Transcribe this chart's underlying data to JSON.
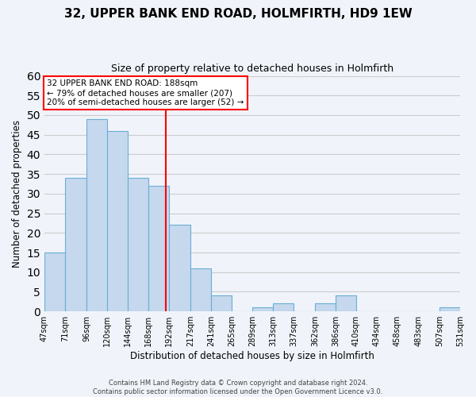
{
  "title": "32, UPPER BANK END ROAD, HOLMFIRTH, HD9 1EW",
  "subtitle": "Size of property relative to detached houses in Holmfirth",
  "xlabel": "Distribution of detached houses by size in Holmfirth",
  "ylabel": "Number of detached properties",
  "bar_edges": [
    47,
    71,
    96,
    120,
    144,
    168,
    192,
    217,
    241,
    265,
    289,
    313,
    337,
    362,
    386,
    410,
    434,
    458,
    483,
    507,
    531
  ],
  "bar_heights": [
    15,
    34,
    49,
    46,
    34,
    32,
    22,
    11,
    4,
    0,
    1,
    2,
    0,
    2,
    4,
    0,
    0,
    0,
    0,
    1
  ],
  "bar_color": "#c5d8ed",
  "bar_edgecolor": "#6aaed6",
  "property_line_x": 188,
  "property_line_color": "red",
  "annotation_text": "32 UPPER BANK END ROAD: 188sqm\n← 79% of detached houses are smaller (207)\n20% of semi-detached houses are larger (52) →",
  "annotation_box_edgecolor": "red",
  "annotation_box_facecolor": "white",
  "ylim": [
    0,
    60
  ],
  "yticks": [
    0,
    5,
    10,
    15,
    20,
    25,
    30,
    35,
    40,
    45,
    50,
    55,
    60
  ],
  "tick_labels": [
    "47sqm",
    "71sqm",
    "96sqm",
    "120sqm",
    "144sqm",
    "168sqm",
    "192sqm",
    "217sqm",
    "241sqm",
    "265sqm",
    "289sqm",
    "313sqm",
    "337sqm",
    "362sqm",
    "386sqm",
    "410sqm",
    "434sqm",
    "458sqm",
    "483sqm",
    "507sqm",
    "531sqm"
  ],
  "footer_line1": "Contains HM Land Registry data © Crown copyright and database right 2024.",
  "footer_line2": "Contains public sector information licensed under the Open Government Licence v3.0.",
  "grid_color": "#cccccc",
  "background_color": "#f0f4fa"
}
